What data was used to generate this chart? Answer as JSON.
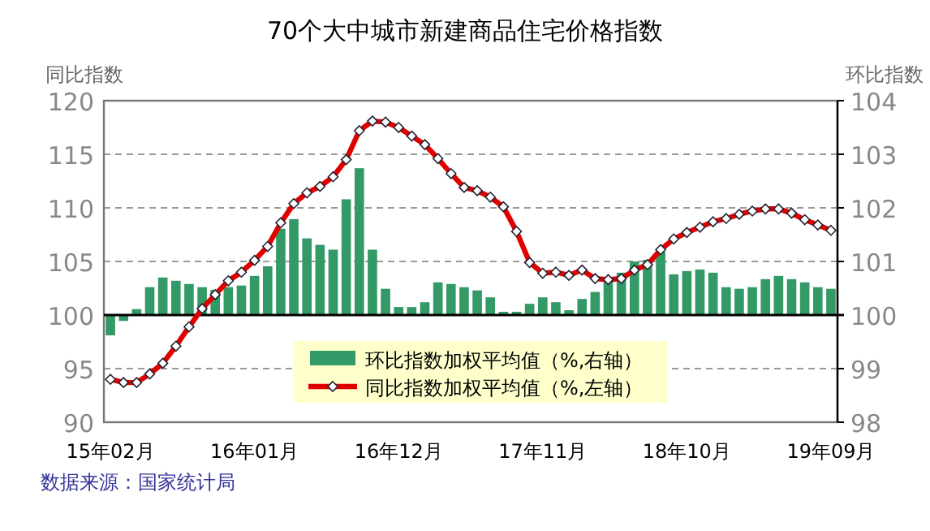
{
  "chart_data": {
    "type": "bar",
    "title": "70个大中城市新建商品住宅价格指数",
    "categories": [
      "15年02月",
      null,
      null,
      null,
      null,
      null,
      null,
      null,
      null,
      null,
      null,
      "16年01月",
      null,
      null,
      null,
      null,
      null,
      null,
      null,
      null,
      null,
      null,
      "16年12月",
      null,
      null,
      null,
      null,
      null,
      null,
      null,
      null,
      null,
      null,
      "17年11月",
      null,
      null,
      null,
      null,
      null,
      null,
      null,
      null,
      null,
      null,
      "18年10月",
      null,
      null,
      null,
      null,
      null,
      null,
      null,
      null,
      null,
      null,
      "19年09月"
    ],
    "series": [
      {
        "name": "环比指数加权平均值（%,右轴）",
        "axis": "y2",
        "color": "#339966",
        "base": [
          100,
          100,
          100,
          100,
          100,
          100,
          100,
          100,
          100,
          100,
          100,
          100,
          100,
          100,
          100,
          100,
          100,
          100,
          100,
          100,
          100,
          100,
          100,
          100,
          100,
          100,
          100,
          100,
          100,
          100,
          100,
          100,
          100,
          100,
          100,
          100,
          100,
          100,
          100,
          100,
          100,
          100,
          100,
          100,
          100,
          100,
          100,
          100,
          100,
          100,
          100,
          100,
          100,
          100,
          100,
          100
        ],
        "values": [
          -0.38,
          -0.11,
          0.11,
          0.52,
          0.7,
          0.64,
          0.58,
          0.52,
          0.47,
          0.52,
          0.55,
          0.73,
          0.91,
          1.61,
          1.79,
          1.43,
          1.31,
          1.22,
          2.16,
          2.74,
          1.22,
          0.49,
          0.15,
          0.15,
          0.24,
          0.61,
          0.58,
          0.52,
          0.46,
          0.33,
          0.06,
          0.06,
          0.21,
          0.33,
          0.24,
          0.09,
          0.3,
          0.43,
          0.64,
          0.79,
          1.0,
          1.03,
          1.18,
          0.76,
          0.82,
          0.85,
          0.79,
          0.52,
          0.49,
          0.52,
          0.67,
          0.73,
          0.67,
          0.61,
          0.52,
          0.49
        ]
      },
      {
        "name": "同比指数加权平均值（%,左轴）",
        "type": "line",
        "axis": "y",
        "color": "#e00000",
        "marker": "diamond",
        "values": [
          94.0,
          93.7,
          93.7,
          94.5,
          95.5,
          97.1,
          98.9,
          100.6,
          101.9,
          103.2,
          104.0,
          105.1,
          106.4,
          108.6,
          110.4,
          111.4,
          112.0,
          112.9,
          114.5,
          117.2,
          118.1,
          118.0,
          117.5,
          116.7,
          115.9,
          114.6,
          113.2,
          111.9,
          111.6,
          111.0,
          110.1,
          107.8,
          104.9,
          103.9,
          104.0,
          103.7,
          104.2,
          103.4,
          103.3,
          103.4,
          104.2,
          104.7,
          106.1,
          107.1,
          107.7,
          108.2,
          108.7,
          109.0,
          109.4,
          109.7,
          109.9,
          109.9,
          109.5,
          108.9,
          108.4,
          107.9
        ]
      }
    ],
    "ylabel": "同比指数",
    "y2label": "环比指数",
    "ylim": [
      90,
      120
    ],
    "yticks": [
      90,
      95,
      100,
      105,
      110,
      115,
      120
    ],
    "y2lim": [
      98,
      104
    ],
    "y2ticks": [
      98,
      99,
      100,
      101,
      102,
      103,
      104
    ],
    "ref_lines": [
      {
        "axis": "y2",
        "value": 100,
        "color": "#000000"
      }
    ],
    "grid": "y",
    "legend": "bottom",
    "annotations": [
      "数据来源：国家统计局"
    ]
  }
}
